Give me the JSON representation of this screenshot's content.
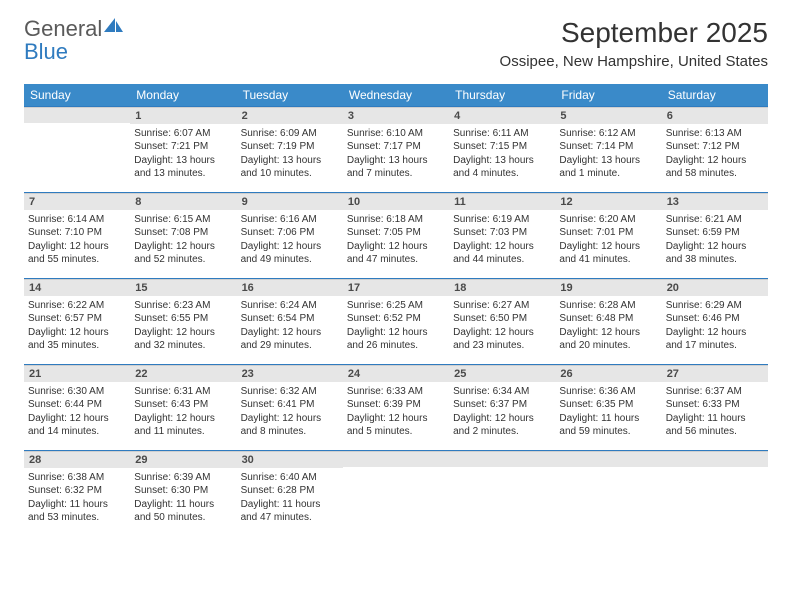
{
  "brand": {
    "part1": "General",
    "part2": "Blue"
  },
  "title": "September 2025",
  "location": "Ossipee, New Hampshire, United States",
  "colors": {
    "header_bg": "#3a8ac9",
    "header_border": "#2f7bbf",
    "daynum_bg": "#e6e6e6",
    "text": "#333333",
    "logo_gray": "#5a5a5a",
    "logo_blue": "#2f7bbf"
  },
  "weekdays": [
    "Sunday",
    "Monday",
    "Tuesday",
    "Wednesday",
    "Thursday",
    "Friday",
    "Saturday"
  ],
  "weeks": [
    [
      {
        "n": "",
        "sr": "",
        "ss": "",
        "dl": ""
      },
      {
        "n": "1",
        "sr": "Sunrise: 6:07 AM",
        "ss": "Sunset: 7:21 PM",
        "dl": "Daylight: 13 hours and 13 minutes."
      },
      {
        "n": "2",
        "sr": "Sunrise: 6:09 AM",
        "ss": "Sunset: 7:19 PM",
        "dl": "Daylight: 13 hours and 10 minutes."
      },
      {
        "n": "3",
        "sr": "Sunrise: 6:10 AM",
        "ss": "Sunset: 7:17 PM",
        "dl": "Daylight: 13 hours and 7 minutes."
      },
      {
        "n": "4",
        "sr": "Sunrise: 6:11 AM",
        "ss": "Sunset: 7:15 PM",
        "dl": "Daylight: 13 hours and 4 minutes."
      },
      {
        "n": "5",
        "sr": "Sunrise: 6:12 AM",
        "ss": "Sunset: 7:14 PM",
        "dl": "Daylight: 13 hours and 1 minute."
      },
      {
        "n": "6",
        "sr": "Sunrise: 6:13 AM",
        "ss": "Sunset: 7:12 PM",
        "dl": "Daylight: 12 hours and 58 minutes."
      }
    ],
    [
      {
        "n": "7",
        "sr": "Sunrise: 6:14 AM",
        "ss": "Sunset: 7:10 PM",
        "dl": "Daylight: 12 hours and 55 minutes."
      },
      {
        "n": "8",
        "sr": "Sunrise: 6:15 AM",
        "ss": "Sunset: 7:08 PM",
        "dl": "Daylight: 12 hours and 52 minutes."
      },
      {
        "n": "9",
        "sr": "Sunrise: 6:16 AM",
        "ss": "Sunset: 7:06 PM",
        "dl": "Daylight: 12 hours and 49 minutes."
      },
      {
        "n": "10",
        "sr": "Sunrise: 6:18 AM",
        "ss": "Sunset: 7:05 PM",
        "dl": "Daylight: 12 hours and 47 minutes."
      },
      {
        "n": "11",
        "sr": "Sunrise: 6:19 AM",
        "ss": "Sunset: 7:03 PM",
        "dl": "Daylight: 12 hours and 44 minutes."
      },
      {
        "n": "12",
        "sr": "Sunrise: 6:20 AM",
        "ss": "Sunset: 7:01 PM",
        "dl": "Daylight: 12 hours and 41 minutes."
      },
      {
        "n": "13",
        "sr": "Sunrise: 6:21 AM",
        "ss": "Sunset: 6:59 PM",
        "dl": "Daylight: 12 hours and 38 minutes."
      }
    ],
    [
      {
        "n": "14",
        "sr": "Sunrise: 6:22 AM",
        "ss": "Sunset: 6:57 PM",
        "dl": "Daylight: 12 hours and 35 minutes."
      },
      {
        "n": "15",
        "sr": "Sunrise: 6:23 AM",
        "ss": "Sunset: 6:55 PM",
        "dl": "Daylight: 12 hours and 32 minutes."
      },
      {
        "n": "16",
        "sr": "Sunrise: 6:24 AM",
        "ss": "Sunset: 6:54 PM",
        "dl": "Daylight: 12 hours and 29 minutes."
      },
      {
        "n": "17",
        "sr": "Sunrise: 6:25 AM",
        "ss": "Sunset: 6:52 PM",
        "dl": "Daylight: 12 hours and 26 minutes."
      },
      {
        "n": "18",
        "sr": "Sunrise: 6:27 AM",
        "ss": "Sunset: 6:50 PM",
        "dl": "Daylight: 12 hours and 23 minutes."
      },
      {
        "n": "19",
        "sr": "Sunrise: 6:28 AM",
        "ss": "Sunset: 6:48 PM",
        "dl": "Daylight: 12 hours and 20 minutes."
      },
      {
        "n": "20",
        "sr": "Sunrise: 6:29 AM",
        "ss": "Sunset: 6:46 PM",
        "dl": "Daylight: 12 hours and 17 minutes."
      }
    ],
    [
      {
        "n": "21",
        "sr": "Sunrise: 6:30 AM",
        "ss": "Sunset: 6:44 PM",
        "dl": "Daylight: 12 hours and 14 minutes."
      },
      {
        "n": "22",
        "sr": "Sunrise: 6:31 AM",
        "ss": "Sunset: 6:43 PM",
        "dl": "Daylight: 12 hours and 11 minutes."
      },
      {
        "n": "23",
        "sr": "Sunrise: 6:32 AM",
        "ss": "Sunset: 6:41 PM",
        "dl": "Daylight: 12 hours and 8 minutes."
      },
      {
        "n": "24",
        "sr": "Sunrise: 6:33 AM",
        "ss": "Sunset: 6:39 PM",
        "dl": "Daylight: 12 hours and 5 minutes."
      },
      {
        "n": "25",
        "sr": "Sunrise: 6:34 AM",
        "ss": "Sunset: 6:37 PM",
        "dl": "Daylight: 12 hours and 2 minutes."
      },
      {
        "n": "26",
        "sr": "Sunrise: 6:36 AM",
        "ss": "Sunset: 6:35 PM",
        "dl": "Daylight: 11 hours and 59 minutes."
      },
      {
        "n": "27",
        "sr": "Sunrise: 6:37 AM",
        "ss": "Sunset: 6:33 PM",
        "dl": "Daylight: 11 hours and 56 minutes."
      }
    ],
    [
      {
        "n": "28",
        "sr": "Sunrise: 6:38 AM",
        "ss": "Sunset: 6:32 PM",
        "dl": "Daylight: 11 hours and 53 minutes."
      },
      {
        "n": "29",
        "sr": "Sunrise: 6:39 AM",
        "ss": "Sunset: 6:30 PM",
        "dl": "Daylight: 11 hours and 50 minutes."
      },
      {
        "n": "30",
        "sr": "Sunrise: 6:40 AM",
        "ss": "Sunset: 6:28 PM",
        "dl": "Daylight: 11 hours and 47 minutes."
      },
      {
        "n": "",
        "sr": "",
        "ss": "",
        "dl": ""
      },
      {
        "n": "",
        "sr": "",
        "ss": "",
        "dl": ""
      },
      {
        "n": "",
        "sr": "",
        "ss": "",
        "dl": ""
      },
      {
        "n": "",
        "sr": "",
        "ss": "",
        "dl": ""
      }
    ]
  ]
}
